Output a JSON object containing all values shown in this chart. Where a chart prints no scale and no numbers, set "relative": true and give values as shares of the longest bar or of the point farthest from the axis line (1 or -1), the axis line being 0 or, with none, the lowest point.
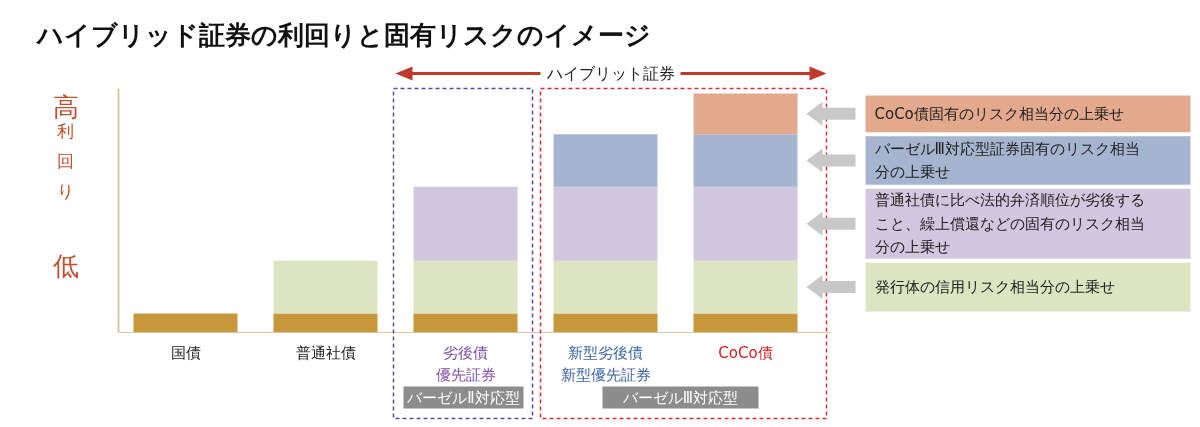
{
  "chart_data": {
    "type": "bar",
    "title": "ハイブリッド証券の利回りと固有リスクのイメージ",
    "categories": [
      "国債",
      "普通社債",
      "劣後債優先証券",
      "新型劣後債新型優先証券",
      "CoCo債"
    ],
    "stacked": true,
    "relative": true,
    "legend": "right",
    "series": [
      {
        "color": "#c9973b",
        "values": [
          0.08,
          0.08,
          0.08,
          0.08,
          0.08
        ]
      },
      {
        "name": "発行体の信用リスク相当分の上乗せ",
        "color": "#dce4c2",
        "values": [
          null,
          0.22,
          0.22,
          0.22,
          0.22
        ]
      },
      {
        "name": "普通社債に比べ法的弁済順位が劣後すること、繰上償還などの固有のリスク相当分の上乗せ",
        "color": "#d1c7de",
        "values": [
          null,
          null,
          0.31,
          0.31,
          0.31
        ]
      },
      {
        "name": "バーゼルⅢ対応型証券固有のリスク相当分の上乗せ",
        "color": "#a6b5cf",
        "values": [
          null,
          null,
          null,
          0.22,
          0.22
        ]
      },
      {
        "name": "CoCo債固有のリスク相当分の上乗せ",
        "color": "#e2a98c",
        "values": [
          null,
          null,
          null,
          null,
          0.17
        ]
      }
    ],
    "annotations": [
      "高",
      "利回り",
      "低",
      "ハイブリット証券",
      "バーゼルⅡ対応型",
      "バーゼルⅢ対応型"
    ]
  }
}
